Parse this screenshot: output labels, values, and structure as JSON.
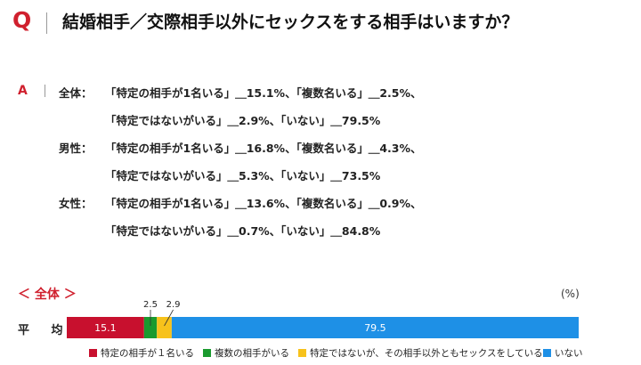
{
  "question": {
    "mark": "Q",
    "text": "結婚相手／交際相手以外にセックスをする相手はいますか？"
  },
  "answer": {
    "mark": "A",
    "groups": [
      {
        "label": "全体：",
        "line1": "「特定の相手が1名いる」＿15.1%、「複数名いる」＿2.5%、",
        "line2": "「特定ではないがいる」＿2.9%、「いない」＿79.5%"
      },
      {
        "label": "男性：",
        "line1": "「特定の相手が1名いる」＿16.8%、「複数名いる」＿4.3%、",
        "line2": "「特定ではないがいる」＿5.3%、「いない」＿73.5%"
      },
      {
        "label": "女性：",
        "line1": "「特定の相手が1名いる」＿13.6%、「複数名いる」＿0.9%、",
        "line2": "「特定ではないがいる」＿0.7%、「いない」＿84.8%"
      }
    ]
  },
  "chart_title": "＜ 全体 ＞",
  "unit": "(%)",
  "chart_data": {
    "type": "bar",
    "orientation": "horizontal-stacked",
    "categories": [
      "平 均"
    ],
    "xlim": [
      0,
      100
    ],
    "series": [
      {
        "name": "特定の相手が１名いる",
        "values": [
          15.1
        ],
        "color": "#c8102e"
      },
      {
        "name": "複数の相手がいる",
        "values": [
          2.5
        ],
        "color": "#1a9a2e"
      },
      {
        "name": "特定ではないが、その相手以外ともセックスをしている",
        "values": [
          2.9
        ],
        "color": "#f7c21b"
      },
      {
        "name": "いない",
        "values": [
          79.5
        ],
        "color": "#1e90e6"
      }
    ],
    "data_labels": [
      "15.1",
      "2.5",
      "2.9",
      "79.5"
    ],
    "legend_position": "bottom"
  }
}
